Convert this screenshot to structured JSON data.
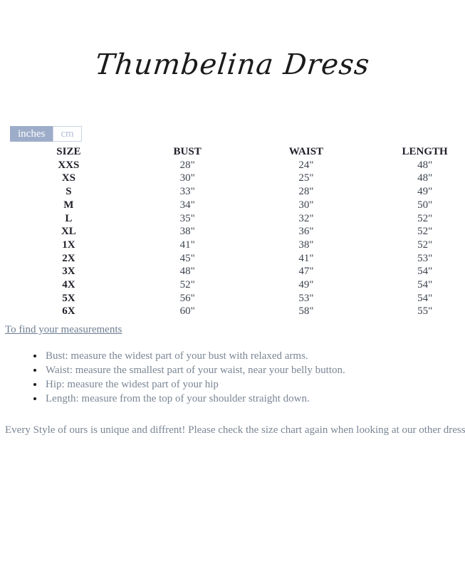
{
  "title": "Thumbelina Dress",
  "unit_toggle": {
    "inches_label": "inches",
    "cm_label": "cm",
    "selected": "inches"
  },
  "size_chart": {
    "type": "table",
    "columns": [
      "SIZE",
      "BUST",
      "WAIST",
      "LENGTH"
    ],
    "rows": [
      [
        "XXS",
        "28\"",
        "24\"",
        "48\""
      ],
      [
        "XS",
        "30\"",
        "25\"",
        "48\""
      ],
      [
        "S",
        "33\"",
        "28\"",
        "49\""
      ],
      [
        "M",
        "34\"",
        "30\"",
        "50\""
      ],
      [
        "L",
        "35\"",
        "32\"",
        "52\""
      ],
      [
        "XL",
        "38\"",
        "36\"",
        "52\""
      ],
      [
        "1X",
        "41\"",
        "38\"",
        "52\""
      ],
      [
        "2X",
        "45\"",
        "41\"",
        "53\""
      ],
      [
        "3X",
        "48\"",
        "47\"",
        "54\""
      ],
      [
        "4X",
        "52\"",
        "49\"",
        "54\""
      ],
      [
        "5X",
        "56\"",
        "53\"",
        "54\""
      ],
      [
        "6X",
        "60\"",
        "58\"",
        "55\""
      ]
    ],
    "unit": "inches"
  },
  "measurements_link": "To find your measurements",
  "instructions": [
    "Bust: measure the widest part of your bust with relaxed arms.",
    "Waist: measure the smallest part of your waist, near your belly button.",
    "Hip: measure the widest part of your hip",
    "Length: measure from the top of your shoulder straight down."
  ],
  "footer_note": "Every Style of ours is unique and diffrent! Please check the size chart again when looking at our other dresses!",
  "colors": {
    "toggle_selected_bg": "#9dacc9",
    "toggle_selected_text": "#ffffff",
    "toggle_unselected_border": "#c9d2e2",
    "toggle_unselected_text": "#b6c1d6",
    "table_header_text": "#20202a",
    "table_value_text": "#3c434e",
    "body_text": "#7a8694",
    "link_text": "#6d7d91",
    "title_text": "#1b1b1b",
    "background": "#ffffff"
  }
}
